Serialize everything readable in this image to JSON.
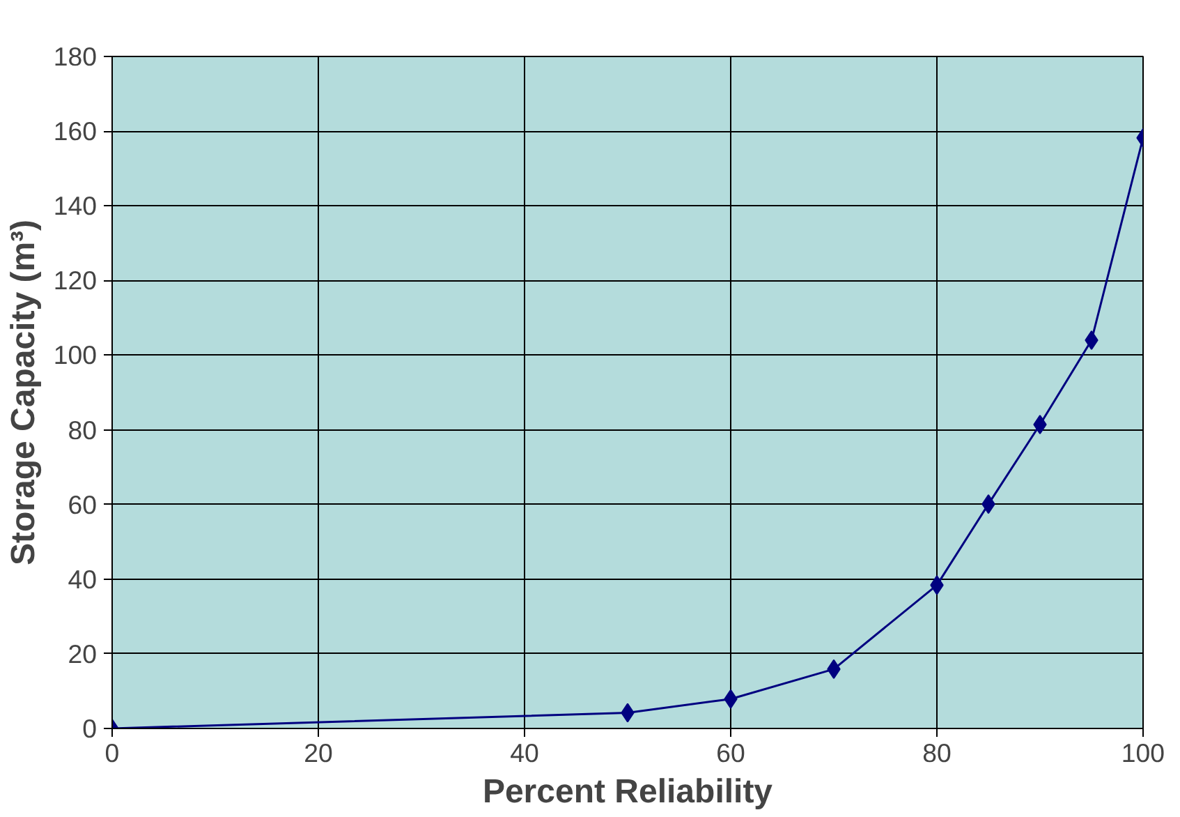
{
  "chart_data": {
    "type": "line",
    "xlabel": "Percent Reliability",
    "ylabel": "Storage Capacity (m³)",
    "x": [
      0,
      50,
      60,
      70,
      80,
      85,
      90,
      95,
      100
    ],
    "series": [
      {
        "color": "#000080",
        "values": [
          0,
          4.2,
          7.9,
          15.9,
          38.4,
          60.1,
          81.4,
          104,
          158.2
        ]
      }
    ],
    "xlim": [
      0,
      100
    ],
    "xticks": [
      0,
      20,
      40,
      60,
      80,
      100
    ],
    "ylim": [
      0,
      180
    ],
    "yticks": [
      0,
      20,
      40,
      60,
      80,
      100,
      120,
      140,
      160,
      180
    ],
    "grid": true,
    "marker": "diamond",
    "line_style": "solid"
  }
}
